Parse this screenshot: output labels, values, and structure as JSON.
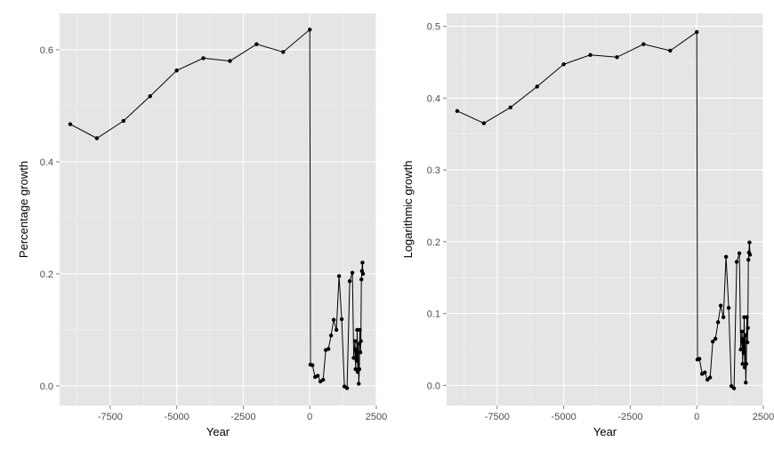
{
  "chart_data": [
    {
      "type": "line",
      "title": "",
      "xlabel": "Year",
      "ylabel": "Percentage growth",
      "xlim": [
        -9400,
        2500
      ],
      "ylim": [
        -0.035,
        0.665
      ],
      "xticks": [
        -7500,
        -5000,
        -2500,
        0,
        2500
      ],
      "xtick_labels": [
        "-7500",
        "-5000",
        "-2500",
        "0",
        "2500"
      ],
      "yticks": [
        0.0,
        0.2,
        0.4,
        0.6
      ],
      "ytick_labels": [
        "0.0",
        "0.2",
        "0.4",
        "0.6"
      ],
      "grid": true,
      "background": "#e5e5e5",
      "line_color": "#000000",
      "markers": true,
      "series": [
        {
          "x": [
            -9000,
            -8000,
            -7000,
            -6000,
            -5000,
            -4000,
            -3000,
            -2000,
            -1000,
            0,
            25,
            100,
            200,
            300,
            400,
            500,
            600,
            700,
            800,
            900,
            1000,
            1100,
            1200,
            1300,
            1400,
            1500,
            1600,
            1650,
            1700,
            1720,
            1740,
            1760,
            1780,
            1800,
            1820,
            1840,
            1860,
            1880,
            1900,
            1920,
            1940,
            1960,
            1980,
            2000
          ],
          "y": [
            0.467,
            0.442,
            0.473,
            0.517,
            0.563,
            0.585,
            0.58,
            0.61,
            0.596,
            0.636,
            0.038,
            0.037,
            0.016,
            0.018,
            0.008,
            0.011,
            0.064,
            0.066,
            0.09,
            0.118,
            0.1,
            0.196,
            0.119,
            -0.001,
            -0.004,
            0.187,
            0.202,
            0.05,
            0.08,
            0.03,
            0.065,
            0.045,
            0.1,
            0.025,
            0.075,
            0.004,
            0.03,
            0.1,
            0.06,
            0.08,
            0.19,
            0.205,
            0.22,
            0.2
          ]
        }
      ]
    },
    {
      "type": "line",
      "title": "",
      "xlabel": "Year",
      "ylabel": "Logarithmic growth",
      "xlim": [
        -9400,
        2500
      ],
      "ylim": [
        -0.028,
        0.518
      ],
      "xticks": [
        -7500,
        -5000,
        -2500,
        0,
        2500
      ],
      "xtick_labels": [
        "-7500",
        "-5000",
        "-2500",
        "0",
        "2500"
      ],
      "yticks": [
        0.0,
        0.1,
        0.2,
        0.3,
        0.4,
        0.5
      ],
      "ytick_labels": [
        "0.0",
        "0.1",
        "0.2",
        "0.3",
        "0.4",
        "0.5"
      ],
      "grid": true,
      "background": "#e5e5e5",
      "line_color": "#000000",
      "markers": true,
      "series": [
        {
          "x": [
            -9000,
            -8000,
            -7000,
            -6000,
            -5000,
            -4000,
            -3000,
            -2000,
            -1000,
            0,
            25,
            100,
            200,
            300,
            400,
            500,
            600,
            700,
            800,
            900,
            1000,
            1100,
            1200,
            1300,
            1400,
            1500,
            1600,
            1650,
            1700,
            1720,
            1740,
            1760,
            1780,
            1800,
            1820,
            1840,
            1860,
            1880,
            1900,
            1920,
            1940,
            1960,
            1980,
            2000
          ],
          "y": [
            0.382,
            0.365,
            0.387,
            0.416,
            0.447,
            0.46,
            0.457,
            0.475,
            0.466,
            0.492,
            0.036,
            0.037,
            0.016,
            0.018,
            0.008,
            0.011,
            0.061,
            0.065,
            0.088,
            0.111,
            0.095,
            0.179,
            0.108,
            -0.001,
            -0.004,
            0.172,
            0.184,
            0.05,
            0.075,
            0.03,
            0.065,
            0.045,
            0.095,
            0.025,
            0.07,
            0.004,
            0.03,
            0.095,
            0.06,
            0.08,
            0.175,
            0.185,
            0.199,
            0.182
          ]
        }
      ]
    }
  ]
}
